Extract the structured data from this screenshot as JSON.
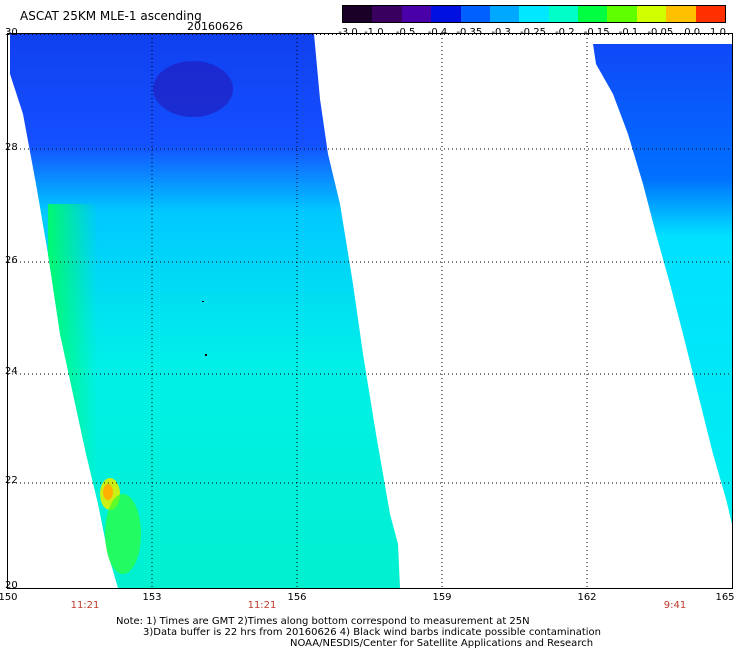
{
  "header": {
    "title": "ASCAT 25KM MLE-1 ascending",
    "date": "20160626"
  },
  "colorbar": {
    "labels": [
      "-3.0",
      "-1.0",
      "-0.5",
      "-0.4",
      "-0.35",
      "-0.3",
      "-0.25",
      "-0.2",
      "-0.15",
      "-0.1",
      "-0.05",
      "0.0",
      "1.0"
    ],
    "colors": [
      "#1a0026",
      "#3a0060",
      "#4a00a8",
      "#0010e0",
      "#0060ff",
      "#00a8ff",
      "#00e8ff",
      "#00ffc8",
      "#00ff40",
      "#60ff00",
      "#d0ff00",
      "#ffc000",
      "#ff3000"
    ]
  },
  "axes": {
    "y_labels": [
      "30",
      "28",
      "26",
      "24",
      "22",
      "20"
    ],
    "x_labels": [
      "150",
      "153",
      "156",
      "159",
      "162",
      "165"
    ]
  },
  "times": [
    "11:21",
    "11:21",
    "9:41"
  ],
  "notes": {
    "line1": "Note: 1) Times are GMT 2)Times along bottom correspond to measurement at 25N",
    "line2": "3)Data buffer is 22 hrs from 20160626 4) Black wind barbs indicate possible contamination",
    "line3": "NOAA/NESDIS/Center for Satellite Applications and Research"
  }
}
